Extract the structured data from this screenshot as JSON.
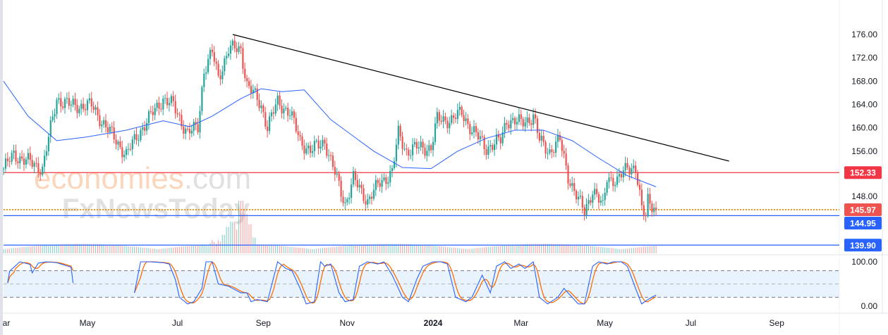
{
  "chart_data": {
    "type": "candlestick",
    "title": "",
    "price_axis": {
      "ticks": [
        "176.00",
        "172.00",
        "168.00",
        "164.00",
        "160.00",
        "156.00",
        "148.00"
      ],
      "range": [
        137.5,
        176.1
      ]
    },
    "time_axis": {
      "labels": [
        {
          "label": "ar",
          "bar": -8
        },
        {
          "label": "May",
          "bar": 41
        },
        {
          "label": "Jul",
          "bar": 85
        },
        {
          "label": "Sep",
          "bar": 127
        },
        {
          "label": "Nov",
          "bar": 168
        },
        {
          "label": "2024",
          "bar": 210,
          "bold": true
        },
        {
          "label": "Mar",
          "bar": 253
        },
        {
          "label": "May",
          "bar": 294
        },
        {
          "label": "Jul",
          "bar": 336
        },
        {
          "label": "Sep",
          "bar": 378
        }
      ]
    },
    "close_path": [
      [
        0,
        153.0
      ],
      [
        5,
        155.4
      ],
      [
        19,
        153.0
      ],
      [
        26,
        165.0
      ],
      [
        33,
        163.8
      ],
      [
        43,
        163.8
      ],
      [
        50,
        160.2
      ],
      [
        60,
        155.4
      ],
      [
        67,
        159.6
      ],
      [
        78,
        165.0
      ],
      [
        83,
        163.8
      ],
      [
        90,
        159.0
      ],
      [
        95,
        160.2
      ],
      [
        98,
        169.9
      ],
      [
        102,
        172.9
      ],
      [
        105,
        168.6
      ],
      [
        110,
        173.5
      ],
      [
        116,
        173.5
      ],
      [
        119,
        167.4
      ],
      [
        126,
        163.8
      ],
      [
        129,
        160.2
      ],
      [
        134,
        164.4
      ],
      [
        140,
        162.6
      ],
      [
        145,
        157.8
      ],
      [
        150,
        156.0
      ],
      [
        157,
        157.8
      ],
      [
        160,
        154.2
      ],
      [
        167,
        147.0
      ],
      [
        171,
        151.2
      ],
      [
        178,
        147.5
      ],
      [
        184,
        150.6
      ],
      [
        190,
        152.4
      ],
      [
        193,
        159.0
      ],
      [
        197,
        156.0
      ],
      [
        202,
        156.6
      ],
      [
        209,
        156.6
      ],
      [
        212,
        161.4
      ],
      [
        219,
        161.4
      ],
      [
        224,
        162.6
      ],
      [
        229,
        159.6
      ],
      [
        236,
        156.6
      ],
      [
        243,
        157.8
      ],
      [
        246,
        161.4
      ],
      [
        253,
        160.8
      ],
      [
        259,
        162.0
      ],
      [
        262,
        157.8
      ],
      [
        267,
        156.0
      ],
      [
        272,
        157.8
      ],
      [
        276,
        151.8
      ],
      [
        281,
        147.5
      ],
      [
        284,
        145.7
      ],
      [
        288,
        149.4
      ],
      [
        293,
        146.3
      ],
      [
        295,
        151.8
      ],
      [
        300,
        150.6
      ],
      [
        305,
        153.6
      ],
      [
        309,
        153.0
      ],
      [
        312,
        145.7
      ],
      [
        314,
        145.1
      ],
      [
        315,
        148.1
      ],
      [
        319,
        145.97
      ]
    ],
    "moving_average": {
      "color": "#2962ff",
      "points": [
        [
          0,
          168.0
        ],
        [
          12,
          162.0
        ],
        [
          26,
          157.8
        ],
        [
          40,
          158.4
        ],
        [
          60,
          159.6
        ],
        [
          78,
          161.2
        ],
        [
          91,
          160.2
        ],
        [
          102,
          162.0
        ],
        [
          116,
          165.0
        ],
        [
          126,
          166.7
        ],
        [
          136,
          166.2
        ],
        [
          147,
          166.5
        ],
        [
          160,
          161.4
        ],
        [
          181,
          156.0
        ],
        [
          195,
          153.2
        ],
        [
          209,
          153.0
        ],
        [
          222,
          156.0
        ],
        [
          236,
          158.2
        ],
        [
          250,
          159.6
        ],
        [
          264,
          159.6
        ],
        [
          278,
          157.8
        ],
        [
          291,
          154.8
        ],
        [
          305,
          151.8
        ],
        [
          319,
          149.9
        ]
      ]
    },
    "trendline": {
      "from": [
        110,
        176.0
      ],
      "to": [
        354,
        154.3
      ],
      "color": "#000000"
    },
    "levels": [
      {
        "price": 152.33,
        "label": "152.33",
        "color": "#f23645",
        "style": "solid"
      },
      {
        "price": 145.97,
        "label": "145.97",
        "color": "#f7931a",
        "tag_color": "#ef5350",
        "style": "dotted"
      },
      {
        "price": 144.95,
        "label": "144.95",
        "color": "#2962ff",
        "style": "solid"
      },
      {
        "price": 139.9,
        "label": "139.90",
        "color": "#2962ff",
        "style": "solid"
      }
    ],
    "volume": {
      "spike_bars": [
        [
          108,
          0.35
        ],
        [
          110,
          0.5
        ],
        [
          112,
          0.6
        ],
        [
          114,
          0.45
        ],
        [
          116,
          1.0
        ],
        [
          118,
          0.75
        ],
        [
          120,
          0.55
        ],
        [
          122,
          0.3
        ]
      ]
    },
    "stochastic": {
      "ticks": [
        "100.00",
        "0.00"
      ],
      "bands": [
        80,
        50,
        20
      ],
      "k_color": "#2962ff",
      "d_color": "#ff6d00",
      "segments": [
        [
          [
            2,
            52
          ],
          [
            3,
            79
          ],
          [
            8,
            100
          ],
          [
            13,
            94
          ],
          [
            14,
            75
          ],
          [
            17,
            97
          ],
          [
            21,
            100
          ],
          [
            26,
            98
          ],
          [
            33,
            88
          ],
          [
            34,
            52
          ]
        ],
        [
          [
            64,
            30
          ],
          [
            67,
            100
          ],
          [
            72,
            100
          ],
          [
            78,
            98
          ],
          [
            81,
            95
          ],
          [
            84,
            60
          ],
          [
            86,
            20
          ],
          [
            90,
            5
          ],
          [
            93,
            10
          ],
          [
            97,
            40
          ],
          [
            99,
            100
          ],
          [
            102,
            100
          ],
          [
            105,
            50
          ],
          [
            110,
            45
          ],
          [
            116,
            30
          ],
          [
            119,
            30
          ],
          [
            121,
            10
          ],
          [
            124,
            15
          ],
          [
            129,
            10
          ],
          [
            134,
            100
          ],
          [
            138,
            85
          ],
          [
            141,
            80
          ],
          [
            145,
            40
          ],
          [
            148,
            5
          ],
          [
            152,
            10
          ],
          [
            155,
            100
          ],
          [
            157,
            90
          ],
          [
            160,
            95
          ],
          [
            164,
            30
          ],
          [
            167,
            10
          ],
          [
            171,
            15
          ],
          [
            174,
            90
          ],
          [
            178,
            100
          ],
          [
            183,
            95
          ],
          [
            186,
            100
          ],
          [
            190,
            70
          ],
          [
            195,
            20
          ],
          [
            198,
            10
          ],
          [
            202,
            60
          ],
          [
            205,
            90
          ],
          [
            210,
            100
          ],
          [
            214,
            100
          ],
          [
            217,
            95
          ],
          [
            221,
            20
          ],
          [
            226,
            10
          ],
          [
            229,
            20
          ],
          [
            234,
            70
          ],
          [
            238,
            30
          ],
          [
            241,
            90
          ],
          [
            245,
            100
          ],
          [
            248,
            85
          ],
          [
            252,
            95
          ],
          [
            255,
            85
          ],
          [
            259,
            100
          ],
          [
            262,
            20
          ],
          [
            266,
            5
          ],
          [
            271,
            20
          ],
          [
            274,
            40
          ],
          [
            278,
            20
          ],
          [
            281,
            5
          ],
          [
            284,
            5
          ],
          [
            288,
            90
          ],
          [
            291,
            100
          ],
          [
            295,
            95
          ],
          [
            298,
            100
          ],
          [
            302,
            100
          ],
          [
            305,
            90
          ],
          [
            309,
            40
          ],
          [
            312,
            5
          ],
          [
            315,
            15
          ],
          [
            319,
            25
          ]
        ]
      ]
    },
    "colors": {
      "up": "#26a69a",
      "down": "#ef5350"
    }
  },
  "watermark": {
    "line1_main": "economies",
    "line1_suffix": ".com",
    "line2": "FxNewsToday"
  }
}
